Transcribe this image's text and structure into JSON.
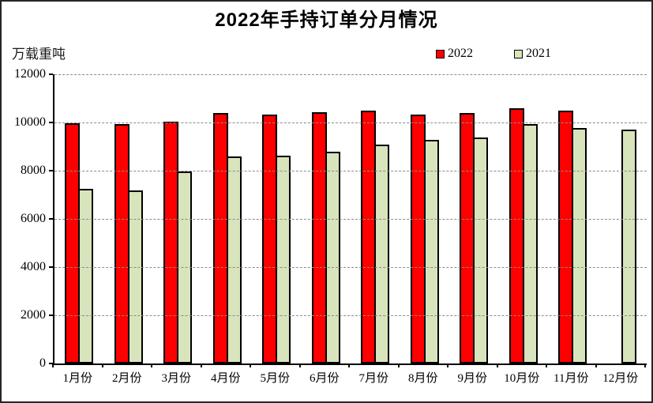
{
  "chart_data": {
    "type": "bar",
    "title": "2022年手持订单分月情况",
    "unit_label": "万载重吨",
    "categories": [
      "1月份",
      "2月份",
      "3月份",
      "4月份",
      "5月份",
      "6月份",
      "7月份",
      "8月份",
      "9月份",
      "10月份",
      "11月份",
      "12月份"
    ],
    "series": [
      {
        "name": "2022",
        "color": "#ff0000",
        "values": [
          9850,
          9790,
          9900,
          10250,
          10190,
          10280,
          10370,
          10200,
          10260,
          10450,
          10360,
          null
        ]
      },
      {
        "name": "2021",
        "color": "#d8e4bc",
        "values": [
          7100,
          7050,
          7840,
          8450,
          8500,
          8660,
          8950,
          9150,
          9250,
          9800,
          9640,
          9590
        ]
      }
    ],
    "ylim": [
      0,
      12000
    ],
    "y_ticks": [
      12000,
      10000,
      8000,
      6000,
      4000,
      2000,
      0
    ],
    "grid": "horizontal-dashed",
    "gridline_color": "#8c8c8c",
    "bar_border_color": "#000000",
    "legend_position": "top-right"
  }
}
